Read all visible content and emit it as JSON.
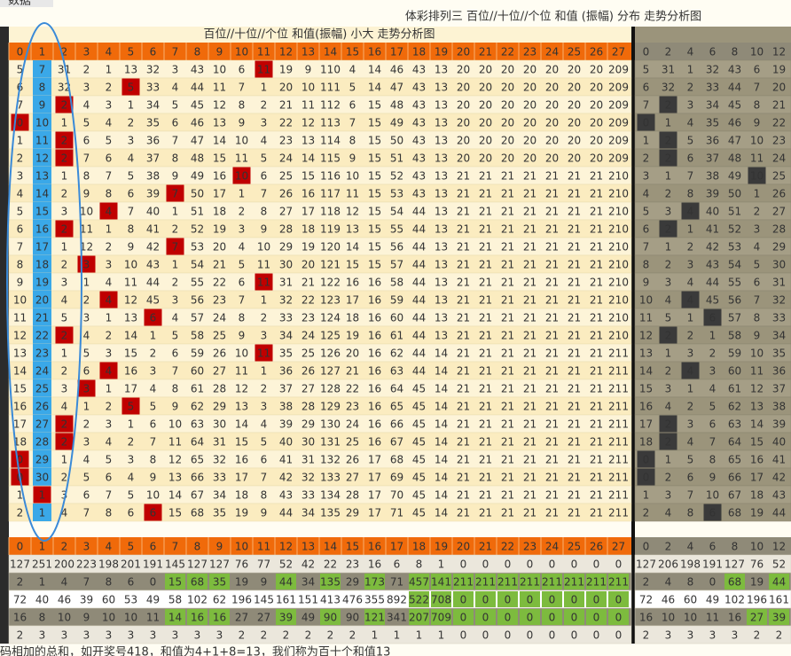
{
  "top_label": "数据",
  "window_title": "体彩排列三  百位//十位//个位  和值 (振幅) 分布 走势分析图",
  "table_title": "百位//十位//个位  和值(振幅) 小大 走势分析图",
  "columns": [
    0,
    1,
    2,
    3,
    4,
    5,
    6,
    7,
    8,
    9,
    10,
    11,
    12,
    13,
    14,
    15,
    16,
    17,
    18,
    19,
    20,
    21,
    22,
    23,
    24,
    25,
    26,
    27
  ],
  "right_columns": [
    0,
    2,
    4,
    6,
    8,
    10,
    12
  ],
  "rows": [
    {
      "cells": [
        5,
        7,
        31,
        2,
        1,
        13,
        32,
        3,
        43,
        10,
        6,
        11,
        19,
        9,
        110,
        4,
        14,
        46,
        43,
        13,
        20,
        20,
        20,
        20,
        20,
        20,
        20,
        209
      ],
      "hit": 11,
      "right": [
        5,
        31,
        1,
        32,
        43,
        6,
        19
      ],
      "right_hit": null
    },
    {
      "cells": [
        6,
        8,
        32,
        3,
        2,
        5,
        33,
        4,
        44,
        11,
        7,
        1,
        20,
        10,
        111,
        5,
        14,
        47,
        43,
        13,
        20,
        20,
        20,
        20,
        20,
        20,
        20,
        209
      ],
      "hit": 5,
      "right": [
        6,
        32,
        2,
        33,
        44,
        7,
        20
      ],
      "right_hit": null
    },
    {
      "cells": [
        7,
        9,
        2,
        4,
        3,
        1,
        34,
        5,
        45,
        12,
        8,
        2,
        21,
        11,
        112,
        6,
        15,
        48,
        43,
        13,
        20,
        20,
        20,
        20,
        20,
        20,
        20,
        209
      ],
      "hit": 2,
      "right": [
        7,
        2,
        3,
        34,
        45,
        8,
        21
      ],
      "right_hit": 1
    },
    {
      "cells": [
        0,
        10,
        1,
        5,
        4,
        2,
        35,
        6,
        46,
        13,
        9,
        3,
        22,
        12,
        113,
        7,
        15,
        49,
        43,
        13,
        20,
        20,
        20,
        20,
        20,
        20,
        20,
        209
      ],
      "hit": 0,
      "right": [
        0,
        1,
        4,
        35,
        46,
        9,
        22
      ],
      "right_hit": 0
    },
    {
      "cells": [
        1,
        11,
        2,
        6,
        5,
        3,
        36,
        7,
        47,
        14,
        10,
        4,
        23,
        13,
        114,
        8,
        15,
        50,
        43,
        13,
        20,
        20,
        20,
        20,
        20,
        20,
        20,
        209
      ],
      "hit": 2,
      "right": [
        1,
        2,
        5,
        36,
        47,
        10,
        23
      ],
      "right_hit": 1
    },
    {
      "cells": [
        2,
        12,
        2,
        7,
        6,
        4,
        37,
        8,
        48,
        15,
        11,
        5,
        24,
        14,
        115,
        9,
        15,
        51,
        43,
        13,
        20,
        20,
        20,
        20,
        20,
        20,
        20,
        209
      ],
      "hit": 2,
      "right": [
        2,
        2,
        6,
        37,
        48,
        11,
        24
      ],
      "right_hit": 1
    },
    {
      "cells": [
        3,
        13,
        1,
        8,
        7,
        5,
        38,
        9,
        49,
        16,
        10,
        6,
        25,
        15,
        116,
        10,
        15,
        52,
        43,
        13,
        21,
        21,
        21,
        21,
        21,
        21,
        21,
        210
      ],
      "hit": 10,
      "right": [
        3,
        1,
        7,
        38,
        49,
        10,
        25
      ],
      "right_hit": 5
    },
    {
      "cells": [
        4,
        14,
        2,
        9,
        8,
        6,
        39,
        7,
        50,
        17,
        1,
        7,
        26,
        16,
        117,
        11,
        15,
        53,
        43,
        13,
        21,
        21,
        21,
        21,
        21,
        21,
        21,
        210
      ],
      "hit": 7,
      "right": [
        4,
        2,
        8,
        39,
        50,
        1,
        26
      ],
      "right_hit": null
    },
    {
      "cells": [
        5,
        15,
        3,
        10,
        4,
        7,
        40,
        1,
        51,
        18,
        2,
        8,
        27,
        17,
        118,
        12,
        15,
        54,
        44,
        13,
        21,
        21,
        21,
        21,
        21,
        21,
        21,
        210
      ],
      "hit": 4,
      "right": [
        5,
        3,
        4,
        40,
        51,
        2,
        27
      ],
      "right_hit": 2
    },
    {
      "cells": [
        6,
        16,
        2,
        11,
        1,
        8,
        41,
        2,
        52,
        19,
        3,
        9,
        28,
        18,
        119,
        13,
        15,
        55,
        44,
        13,
        21,
        21,
        21,
        21,
        21,
        21,
        21,
        210
      ],
      "hit": 2,
      "right": [
        6,
        2,
        1,
        41,
        52,
        3,
        28
      ],
      "right_hit": 1
    },
    {
      "cells": [
        7,
        17,
        1,
        12,
        2,
        9,
        42,
        7,
        53,
        20,
        4,
        10,
        29,
        19,
        120,
        14,
        15,
        56,
        44,
        13,
        21,
        21,
        21,
        21,
        21,
        21,
        21,
        210
      ],
      "hit": 7,
      "right": [
        7,
        1,
        2,
        42,
        53,
        4,
        29
      ],
      "right_hit": null
    },
    {
      "cells": [
        8,
        18,
        2,
        3,
        3,
        10,
        43,
        1,
        54,
        21,
        5,
        11,
        30,
        20,
        121,
        15,
        15,
        57,
        44,
        13,
        21,
        21,
        21,
        21,
        21,
        21,
        21,
        210
      ],
      "hit": 3,
      "right": [
        8,
        2,
        3,
        43,
        54,
        5,
        30
      ],
      "right_hit": null
    },
    {
      "cells": [
        9,
        19,
        3,
        1,
        4,
        11,
        44,
        2,
        55,
        22,
        6,
        11,
        31,
        21,
        122,
        16,
        16,
        58,
        44,
        13,
        21,
        21,
        21,
        21,
        21,
        21,
        21,
        210
      ],
      "hit": 11,
      "right": [
        9,
        3,
        4,
        44,
        55,
        6,
        31
      ],
      "right_hit": null
    },
    {
      "cells": [
        10,
        20,
        4,
        2,
        4,
        12,
        45,
        3,
        56,
        23,
        7,
        1,
        32,
        22,
        123,
        17,
        16,
        59,
        44,
        13,
        21,
        21,
        21,
        21,
        21,
        21,
        21,
        210
      ],
      "hit": 4,
      "right": [
        10,
        4,
        4,
        45,
        56,
        7,
        32
      ],
      "right_hit": 2
    },
    {
      "cells": [
        11,
        21,
        5,
        3,
        1,
        13,
        6,
        4,
        57,
        24,
        8,
        2,
        33,
        23,
        124,
        18,
        16,
        60,
        44,
        13,
        21,
        21,
        21,
        21,
        21,
        21,
        21,
        210
      ],
      "hit": 6,
      "right": [
        11,
        5,
        1,
        6,
        57,
        8,
        33
      ],
      "right_hit": 3
    },
    {
      "cells": [
        12,
        22,
        2,
        4,
        2,
        14,
        1,
        5,
        58,
        25,
        9,
        3,
        34,
        24,
        125,
        19,
        16,
        61,
        44,
        13,
        21,
        21,
        21,
        21,
        21,
        21,
        21,
        210
      ],
      "hit": 2,
      "right": [
        12,
        2,
        2,
        1,
        58,
        9,
        34
      ],
      "right_hit": 1
    },
    {
      "cells": [
        13,
        23,
        1,
        5,
        3,
        15,
        2,
        6,
        59,
        26,
        10,
        11,
        35,
        25,
        126,
        20,
        16,
        62,
        44,
        14,
        21,
        21,
        21,
        21,
        21,
        21,
        21,
        211
      ],
      "hit": 11,
      "right": [
        13,
        1,
        3,
        2,
        59,
        10,
        35
      ],
      "right_hit": null
    },
    {
      "cells": [
        14,
        24,
        2,
        6,
        4,
        16,
        3,
        7,
        60,
        27,
        11,
        1,
        36,
        26,
        127,
        21,
        16,
        63,
        44,
        14,
        21,
        21,
        21,
        21,
        21,
        21,
        21,
        211
      ],
      "hit": 4,
      "right": [
        14,
        2,
        4,
        3,
        60,
        11,
        36
      ],
      "right_hit": 2
    },
    {
      "cells": [
        15,
        25,
        3,
        3,
        1,
        17,
        4,
        8,
        61,
        28,
        12,
        2,
        37,
        27,
        128,
        22,
        16,
        64,
        45,
        14,
        21,
        21,
        21,
        21,
        21,
        21,
        21,
        211
      ],
      "hit": 3,
      "right": [
        15,
        3,
        1,
        4,
        61,
        12,
        37
      ],
      "right_hit": null
    },
    {
      "cells": [
        16,
        26,
        4,
        1,
        2,
        5,
        5,
        9,
        62,
        29,
        13,
        3,
        38,
        28,
        129,
        23,
        16,
        65,
        45,
        14,
        21,
        21,
        21,
        21,
        21,
        21,
        21,
        211
      ],
      "hit": 5,
      "right": [
        16,
        4,
        2,
        5,
        62,
        13,
        38
      ],
      "right_hit": null
    },
    {
      "cells": [
        17,
        27,
        2,
        2,
        3,
        1,
        6,
        10,
        63,
        30,
        14,
        4,
        39,
        29,
        130,
        24,
        16,
        66,
        45,
        14,
        21,
        21,
        21,
        21,
        21,
        21,
        21,
        211
      ],
      "hit": 2,
      "right": [
        17,
        2,
        3,
        6,
        63,
        14,
        39
      ],
      "right_hit": 1
    },
    {
      "cells": [
        18,
        28,
        2,
        3,
        4,
        2,
        7,
        11,
        64,
        31,
        15,
        5,
        40,
        30,
        131,
        25,
        16,
        67,
        45,
        14,
        21,
        21,
        21,
        21,
        21,
        21,
        21,
        211
      ],
      "hit": 2,
      "right": [
        18,
        2,
        4,
        7,
        64,
        15,
        40
      ],
      "right_hit": 1
    },
    {
      "cells": [
        0,
        29,
        1,
        4,
        5,
        3,
        8,
        12,
        65,
        32,
        16,
        6,
        41,
        31,
        132,
        26,
        17,
        68,
        45,
        14,
        21,
        21,
        21,
        21,
        21,
        21,
        21,
        211
      ],
      "hit": 0,
      "right": [
        0,
        1,
        5,
        8,
        65,
        16,
        41
      ],
      "right_hit": 0
    },
    {
      "cells": [
        0,
        30,
        2,
        5,
        6,
        4,
        9,
        13,
        66,
        33,
        17,
        7,
        42,
        32,
        133,
        27,
        17,
        69,
        45,
        14,
        21,
        21,
        21,
        21,
        21,
        21,
        21,
        211
      ],
      "hit": 0,
      "right": [
        0,
        2,
        6,
        9,
        66,
        17,
        42
      ],
      "right_hit": 0
    },
    {
      "cells": [
        1,
        1,
        3,
        6,
        7,
        5,
        10,
        14,
        67,
        34,
        18,
        8,
        43,
        33,
        134,
        28,
        17,
        70,
        45,
        14,
        21,
        21,
        21,
        21,
        21,
        21,
        21,
        211
      ],
      "hit": 1,
      "right": [
        1,
        3,
        7,
        10,
        67,
        18,
        43
      ],
      "right_hit": null
    },
    {
      "cells": [
        2,
        1,
        4,
        7,
        8,
        6,
        6,
        15,
        68,
        35,
        19,
        9,
        44,
        34,
        135,
        29,
        17,
        71,
        45,
        14,
        21,
        21,
        21,
        21,
        21,
        21,
        21,
        211
      ],
      "hit": 6,
      "right": [
        2,
        4,
        8,
        6,
        68,
        19,
        44
      ],
      "right_hit": 3
    }
  ],
  "stats": [
    {
      "cells": [
        127,
        251,
        200,
        223,
        198,
        201,
        191,
        145,
        127,
        127,
        76,
        77,
        52,
        42,
        22,
        23,
        16,
        6,
        8,
        1,
        0,
        0,
        0,
        0,
        0,
        0,
        0,
        0
      ],
      "right": [
        127,
        206,
        198,
        191,
        127,
        76,
        52
      ],
      "green": [],
      "right_green": []
    },
    {
      "cells": [
        2,
        1,
        4,
        7,
        8,
        6,
        0,
        15,
        68,
        35,
        19,
        9,
        44,
        34,
        135,
        29,
        173,
        71,
        457,
        141,
        211,
        211,
        211,
        211,
        211,
        211,
        211,
        211
      ],
      "right": [
        2,
        4,
        8,
        0,
        68,
        19,
        44
      ],
      "green": [
        7,
        8,
        9,
        12,
        14,
        16,
        18,
        19,
        20,
        21,
        22,
        23,
        24,
        25,
        26,
        27
      ],
      "right_green": [
        4,
        6
      ]
    },
    {
      "cells": [
        72,
        40,
        46,
        39,
        60,
        53,
        49,
        58,
        102,
        62,
        196,
        145,
        161,
        151,
        413,
        476,
        355,
        892,
        522,
        708,
        0,
        0,
        0,
        0,
        0,
        0,
        0,
        0
      ],
      "right": [
        72,
        46,
        60,
        49,
        102,
        196,
        161
      ],
      "green": [
        18,
        19,
        20,
        21,
        22,
        23,
        24,
        25,
        26,
        27
      ],
      "right_green": []
    },
    {
      "cells": [
        16,
        8,
        10,
        9,
        10,
        10,
        11,
        14,
        16,
        16,
        27,
        27,
        39,
        49,
        90,
        90,
        121,
        341,
        207,
        709,
        0,
        0,
        0,
        0,
        0,
        0,
        0,
        0
      ],
      "right": [
        16,
        10,
        10,
        11,
        16,
        27,
        39
      ],
      "green": [
        7,
        8,
        9,
        12,
        14,
        16,
        18,
        19,
        20,
        21,
        22,
        23,
        24,
        25,
        26,
        27
      ],
      "right_green": [
        5,
        6
      ]
    },
    {
      "cells": [
        2,
        3,
        3,
        3,
        3,
        3,
        3,
        3,
        3,
        3,
        2,
        2,
        2,
        2,
        2,
        2,
        1,
        1,
        1,
        1,
        0,
        0,
        0,
        0,
        0,
        0,
        0,
        0
      ],
      "right": [
        2,
        3,
        3,
        3,
        3,
        2,
        2
      ],
      "green": [],
      "right_green": []
    }
  ],
  "footer": "码相加的总和，如开奖号418，和值为4+1+8=13，我们称为百十个和值13"
}
